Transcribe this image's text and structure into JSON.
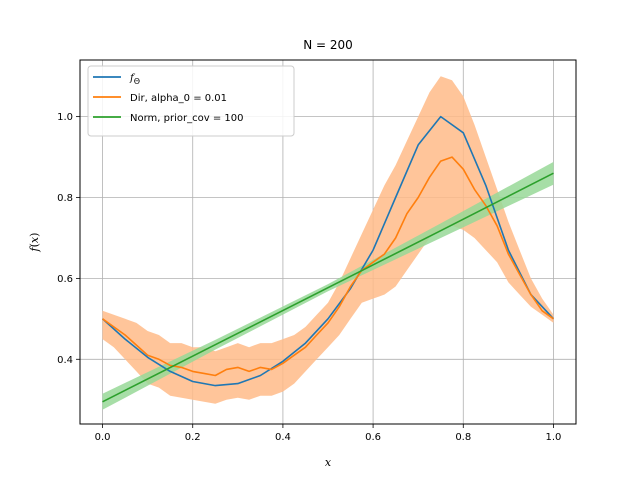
{
  "chart_data": {
    "type": "line",
    "title": "N = 200",
    "xlabel": "x",
    "ylabel": "f(x)",
    "xlim": [
      -0.05,
      1.05
    ],
    "ylim": [
      0.24,
      1.14
    ],
    "xticks": [
      0.0,
      0.2,
      0.4,
      0.6,
      0.8,
      1.0
    ],
    "xtick_labels": [
      "0.0",
      "0.2",
      "0.4",
      "0.6",
      "0.8",
      "1.0"
    ],
    "yticks": [
      0.4,
      0.6,
      0.8,
      1.0
    ],
    "ytick_labels": [
      "0.4",
      "0.6",
      "0.8",
      "1.0"
    ],
    "grid": true,
    "legend_position": "top-left",
    "series": [
      {
        "name": "f_Θ",
        "legend_main": "f",
        "legend_sub": "Θ",
        "color": "#1f77b4",
        "kind": "line",
        "x": [
          0.0,
          0.05,
          0.1,
          0.15,
          0.2,
          0.25,
          0.3,
          0.35,
          0.4,
          0.45,
          0.5,
          0.55,
          0.6,
          0.65,
          0.7,
          0.75,
          0.8,
          0.85,
          0.9,
          0.95,
          1.0
        ],
        "y": [
          0.5,
          0.45,
          0.405,
          0.37,
          0.345,
          0.335,
          0.34,
          0.36,
          0.395,
          0.44,
          0.5,
          0.575,
          0.67,
          0.8,
          0.93,
          1.0,
          0.96,
          0.83,
          0.67,
          0.56,
          0.5
        ]
      },
      {
        "name": "Dir, alpha_0 = 0.01",
        "color": "#ff7f0e",
        "band_color": "#ffbb88",
        "kind": "line_with_band",
        "x": [
          0.0,
          0.025,
          0.05,
          0.075,
          0.1,
          0.125,
          0.15,
          0.175,
          0.2,
          0.225,
          0.25,
          0.275,
          0.3,
          0.325,
          0.35,
          0.375,
          0.4,
          0.425,
          0.45,
          0.475,
          0.5,
          0.525,
          0.55,
          0.575,
          0.6,
          0.625,
          0.65,
          0.675,
          0.7,
          0.725,
          0.75,
          0.775,
          0.8,
          0.825,
          0.85,
          0.875,
          0.9,
          0.925,
          0.95,
          0.975,
          1.0
        ],
        "y": [
          0.5,
          0.48,
          0.46,
          0.435,
          0.41,
          0.4,
          0.385,
          0.38,
          0.37,
          0.365,
          0.36,
          0.375,
          0.38,
          0.37,
          0.38,
          0.375,
          0.39,
          0.41,
          0.43,
          0.46,
          0.49,
          0.53,
          0.58,
          0.62,
          0.64,
          0.66,
          0.7,
          0.76,
          0.8,
          0.85,
          0.89,
          0.9,
          0.87,
          0.82,
          0.78,
          0.73,
          0.66,
          0.61,
          0.56,
          0.52,
          0.5
        ],
        "lower": [
          0.45,
          0.43,
          0.4,
          0.37,
          0.34,
          0.33,
          0.31,
          0.305,
          0.3,
          0.295,
          0.29,
          0.3,
          0.305,
          0.3,
          0.31,
          0.31,
          0.32,
          0.34,
          0.37,
          0.4,
          0.43,
          0.46,
          0.5,
          0.54,
          0.55,
          0.56,
          0.58,
          0.62,
          0.66,
          0.7,
          0.72,
          0.73,
          0.72,
          0.7,
          0.67,
          0.64,
          0.59,
          0.56,
          0.53,
          0.51,
          0.49
        ],
        "upper": [
          0.52,
          0.51,
          0.5,
          0.49,
          0.47,
          0.46,
          0.44,
          0.44,
          0.43,
          0.43,
          0.42,
          0.43,
          0.44,
          0.43,
          0.44,
          0.44,
          0.45,
          0.46,
          0.48,
          0.51,
          0.54,
          0.59,
          0.65,
          0.71,
          0.77,
          0.83,
          0.88,
          0.94,
          1.0,
          1.06,
          1.1,
          1.09,
          1.05,
          0.98,
          0.9,
          0.82,
          0.74,
          0.67,
          0.6,
          0.55,
          0.51
        ]
      },
      {
        "name": "Norm, prior_cov = 100",
        "color": "#2ca02c",
        "band_color": "#98d898",
        "kind": "line_with_band",
        "x": [
          0.0,
          0.25,
          0.5,
          0.75,
          1.0
        ],
        "y": [
          0.295,
          0.436,
          0.577,
          0.718,
          0.86
        ],
        "lower": [
          0.275,
          0.424,
          0.568,
          0.7,
          0.832
        ],
        "upper": [
          0.315,
          0.448,
          0.586,
          0.736,
          0.888
        ]
      }
    ]
  }
}
